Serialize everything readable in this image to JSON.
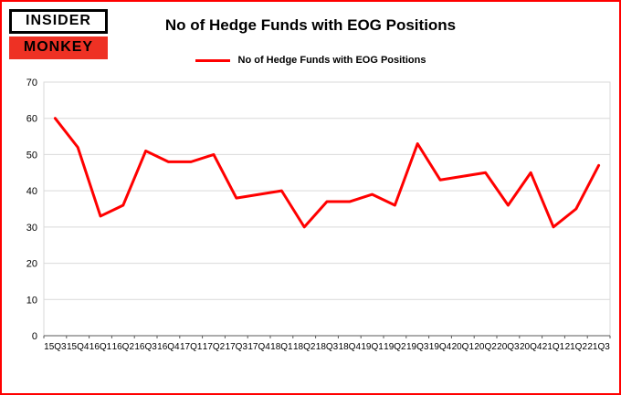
{
  "colors": {
    "page_border": "#ff0000",
    "line": "#ff0000",
    "logo_red": "#ee3124",
    "gridline": "#d9d9d9",
    "axis": "#808080",
    "text": "#000000"
  },
  "logo": {
    "line1": "INSIDER",
    "line2": "MONKEY"
  },
  "header": {
    "title": "No of Hedge Funds with EOG Positions"
  },
  "legend": {
    "label": "No of Hedge Funds with EOG Positions"
  },
  "chart_data": {
    "type": "line",
    "title": "No of Hedge Funds with EOG Positions",
    "categories": [
      "15Q3",
      "15Q4",
      "16Q1",
      "16Q2",
      "16Q3",
      "16Q4",
      "17Q1",
      "17Q2",
      "17Q3",
      "17Q4",
      "18Q1",
      "18Q2",
      "18Q3",
      "18Q4",
      "19Q1",
      "19Q2",
      "19Q3",
      "19Q4",
      "20Q1",
      "20Q2",
      "20Q3",
      "20Q4",
      "21Q1",
      "21Q2",
      "21Q3"
    ],
    "values": [
      60,
      52,
      33,
      36,
      51,
      48,
      48,
      50,
      38,
      39,
      40,
      30,
      37,
      37,
      39,
      36,
      53,
      43,
      44,
      45,
      36,
      45,
      30,
      35,
      47
    ],
    "series_name": "No of Hedge Funds with EOG Positions",
    "xlabel": "",
    "ylabel": "",
    "ylim": [
      0,
      70
    ],
    "yticks": [
      0,
      10,
      20,
      30,
      40,
      50,
      60,
      70
    ],
    "grid": true,
    "legend_position": "top",
    "line_color": "#ff0000",
    "line_width": 3
  }
}
